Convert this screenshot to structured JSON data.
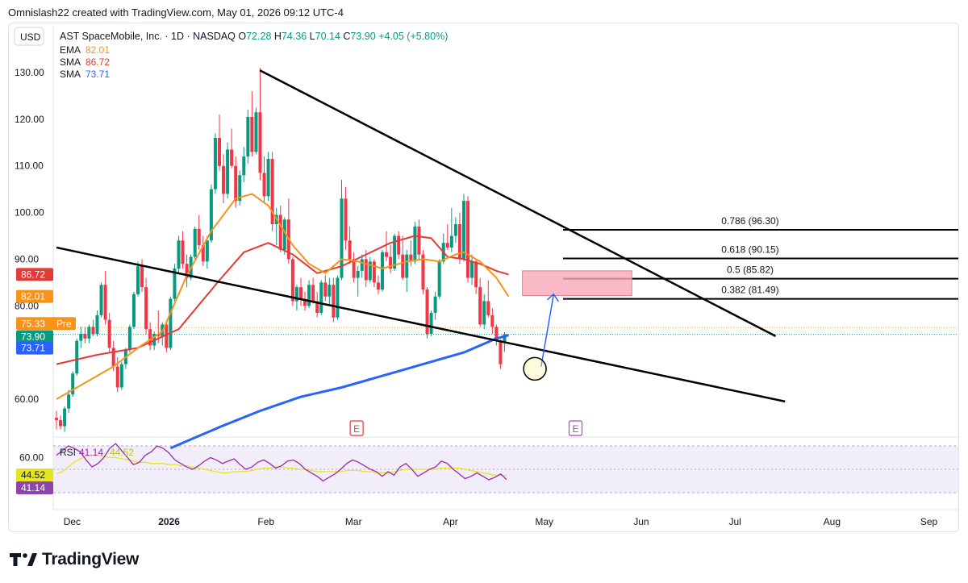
{
  "header": {
    "caption": "Omnislash22 created with TradingView.com, May 01, 2026 09:12 UTC-4"
  },
  "symbol": {
    "currency": "USD",
    "name": "AST SpaceMobile, Inc. · 1D · NASDAQ",
    "o_label": "O",
    "o": "72.28",
    "h_label": "H",
    "h": "74.36",
    "l_label": "L",
    "l": "70.14",
    "c_label": "C",
    "c": "73.90",
    "change": "+4.05 (+5.80%)"
  },
  "indicators": [
    {
      "name": "EMA",
      "value": "82.01",
      "color": "#f7931a"
    },
    {
      "name": "SMA",
      "value": "86.72",
      "color": "#e53935"
    },
    {
      "name": "SMA",
      "value": "73.71",
      "color": "#2962ff"
    }
  ],
  "price_tags": [
    {
      "text": "86.72",
      "bg": "#e53935"
    },
    {
      "text": "82.01",
      "bg": "#f7931a"
    },
    {
      "text": "75.33",
      "bg": "#f7931a",
      "suffix": "Pre"
    },
    {
      "text": "73.90",
      "bg": "#089981"
    },
    {
      "text": "73.71",
      "bg": "#2962ff"
    }
  ],
  "rsi": {
    "label": "RSI",
    "v1": "41.14",
    "v2": "44.52",
    "ticks": [
      "60.00"
    ],
    "tag1": "44.52",
    "tag2": "41.14"
  },
  "fib_labels": [
    "0.786 (96.30)",
    "0.618 (90.15)",
    "0.5 (85.82)",
    "0.382 (81.49)"
  ],
  "earnings_markers": [
    "E",
    "E"
  ],
  "brand": "TradingView",
  "colors": {
    "up": "#089981",
    "down": "#f23645",
    "ema": "#f7931a",
    "sma_fast": "#e53935",
    "sma_slow": "#2962ff",
    "rsi": "#9c27b0",
    "rsi_ma": "#e6e61e",
    "zone": "#f7a8b8"
  },
  "chart_data": {
    "type": "candlestick",
    "y_ticks": [
      "130.00",
      "120.00",
      "110.00",
      "100.00",
      "90.00",
      "80.00",
      "60.00"
    ],
    "x_ticks": [
      "Dec",
      "2026",
      "Feb",
      "Mar",
      "Apr",
      "May",
      "Jun",
      "Jul",
      "Aug",
      "Sep"
    ],
    "ylim": [
      50.5,
      134
    ],
    "first_date": "2025-11-26",
    "grid": false,
    "candles": [
      [
        56.0,
        57.5,
        53.5,
        55.5
      ],
      [
        55.5,
        56.5,
        53.5,
        54.2
      ],
      [
        54.2,
        58.5,
        53.0,
        58.0
      ],
      [
        58.0,
        62.0,
        57.0,
        61.0
      ],
      [
        61.0,
        66.0,
        60.5,
        65.5
      ],
      [
        65.5,
        73.0,
        65.0,
        72.5
      ],
      [
        72.5,
        75.5,
        71.0,
        74.0
      ],
      [
        74.0,
        75.5,
        72.0,
        73.0
      ],
      [
        73.0,
        76.0,
        72.0,
        75.5
      ],
      [
        75.5,
        77.0,
        73.5,
        74.0
      ],
      [
        74.0,
        79.0,
        73.5,
        78.0
      ],
      [
        78.0,
        85.0,
        77.5,
        84.5
      ],
      [
        84.5,
        87.5,
        76.0,
        77.0
      ],
      [
        77.0,
        78.5,
        70.0,
        71.0
      ],
      [
        71.0,
        72.5,
        66.0,
        67.0
      ],
      [
        67.0,
        69.0,
        61.5,
        62.5
      ],
      [
        62.5,
        68.0,
        62.0,
        67.5
      ],
      [
        67.5,
        71.0,
        66.5,
        70.5
      ],
      [
        70.5,
        76.0,
        70.0,
        75.5
      ],
      [
        75.5,
        83.0,
        75.0,
        82.5
      ],
      [
        82.5,
        89.5,
        82.0,
        88.5
      ],
      [
        88.5,
        90.0,
        83.0,
        84.0
      ],
      [
        84.0,
        86.0,
        74.0,
        75.0
      ],
      [
        75.0,
        76.5,
        70.5,
        71.5
      ],
      [
        71.5,
        74.5,
        70.5,
        74.0
      ],
      [
        74.0,
        79.0,
        72.0,
        73.5
      ],
      [
        73.5,
        76.5,
        71.5,
        76.0
      ],
      [
        76.0,
        77.0,
        70.0,
        71.0
      ],
      [
        71.0,
        82.0,
        70.5,
        81.5
      ],
      [
        81.5,
        89.0,
        81.0,
        88.0
      ],
      [
        88.0,
        95.0,
        87.0,
        94.0
      ],
      [
        94.0,
        96.0,
        88.0,
        89.0
      ],
      [
        89.0,
        91.0,
        84.0,
        86.0
      ],
      [
        86.0,
        91.0,
        85.5,
        90.5
      ],
      [
        90.5,
        97.0,
        90.0,
        96.5
      ],
      [
        96.5,
        99.5,
        92.0,
        93.0
      ],
      [
        93.0,
        95.0,
        88.5,
        89.5
      ],
      [
        89.5,
        95.0,
        88.0,
        94.0
      ],
      [
        94.0,
        106.0,
        93.5,
        105.0
      ],
      [
        105.0,
        117.0,
        104.0,
        116.0
      ],
      [
        116.0,
        121.0,
        109.0,
        110.0
      ],
      [
        110.0,
        112.5,
        102.0,
        104.0
      ],
      [
        104.0,
        115.0,
        103.0,
        113.5
      ],
      [
        113.5,
        118.0,
        109.5,
        110.0
      ],
      [
        110.0,
        112.0,
        101.0,
        102.5
      ],
      [
        102.5,
        109.0,
        101.5,
        108.0
      ],
      [
        108.0,
        114.0,
        106.5,
        112.0
      ],
      [
        112.0,
        122.0,
        110.5,
        120.5
      ],
      [
        120.5,
        126.0,
        112.0,
        113.0
      ],
      [
        113.0,
        122.5,
        112.5,
        121.5
      ],
      [
        121.5,
        131.0,
        107.0,
        108.5
      ],
      [
        108.5,
        112.0,
        102.0,
        103.5
      ],
      [
        103.5,
        113.0,
        102.5,
        111.5
      ],
      [
        111.5,
        113.0,
        96.0,
        97.5
      ],
      [
        97.5,
        101.0,
        93.0,
        99.5
      ],
      [
        99.5,
        101.5,
        91.5,
        92.0
      ],
      [
        92.0,
        99.0,
        91.0,
        98.5
      ],
      [
        98.5,
        103.0,
        89.0,
        90.0
      ],
      [
        90.0,
        90.5,
        80.0,
        81.0
      ],
      [
        81.0,
        84.5,
        79.0,
        84.0
      ],
      [
        84.0,
        86.0,
        80.0,
        81.5
      ],
      [
        81.5,
        83.0,
        79.0,
        80.0
      ],
      [
        80.0,
        85.5,
        79.5,
        84.5
      ],
      [
        84.5,
        86.0,
        80.5,
        81.0
      ],
      [
        81.0,
        83.0,
        77.5,
        78.5
      ],
      [
        78.5,
        85.5,
        78.0,
        85.0
      ],
      [
        85.0,
        86.5,
        81.0,
        82.0
      ],
      [
        82.0,
        86.0,
        80.0,
        84.5
      ],
      [
        84.5,
        86.0,
        76.5,
        77.5
      ],
      [
        77.5,
        86.5,
        77.0,
        86.0
      ],
      [
        86.0,
        107.0,
        85.5,
        103.0
      ],
      [
        103.0,
        105.5,
        92.0,
        94.0
      ],
      [
        94.0,
        97.0,
        89.0,
        90.0
      ],
      [
        90.0,
        91.5,
        85.0,
        86.0
      ],
      [
        86.0,
        88.5,
        82.0,
        87.5
      ],
      [
        87.5,
        91.0,
        86.0,
        90.0
      ],
      [
        90.0,
        92.0,
        84.0,
        85.5
      ],
      [
        85.5,
        90.5,
        85.0,
        89.5
      ],
      [
        89.5,
        90.0,
        84.0,
        85.0
      ],
      [
        85.0,
        86.5,
        82.5,
        83.5
      ],
      [
        83.5,
        92.0,
        83.0,
        91.5
      ],
      [
        91.5,
        96.0,
        89.5,
        90.5
      ],
      [
        90.5,
        93.0,
        87.0,
        88.0
      ],
      [
        88.0,
        95.5,
        87.5,
        95.0
      ],
      [
        95.0,
        96.0,
        90.0,
        91.0
      ],
      [
        91.0,
        95.0,
        85.5,
        86.0
      ],
      [
        86.0,
        92.0,
        83.0,
        91.0
      ],
      [
        91.0,
        94.0,
        88.5,
        89.5
      ],
      [
        89.5,
        98.0,
        89.0,
        97.0
      ],
      [
        97.0,
        98.5,
        90.0,
        91.0
      ],
      [
        91.0,
        92.0,
        82.5,
        83.5
      ],
      [
        83.5,
        84.0,
        73.0,
        74.0
      ],
      [
        74.0,
        79.0,
        73.5,
        78.5
      ],
      [
        78.5,
        83.0,
        77.0,
        82.0
      ],
      [
        82.0,
        90.0,
        81.5,
        89.5
      ],
      [
        89.5,
        95.5,
        89.0,
        93.5
      ],
      [
        93.5,
        97.5,
        92.0,
        92.5
      ],
      [
        92.5,
        101.0,
        91.5,
        95.0
      ],
      [
        95.0,
        99.0,
        93.5,
        97.5
      ],
      [
        97.5,
        100.0,
        89.0,
        90.0
      ],
      [
        90.0,
        104.0,
        89.5,
        102.5
      ],
      [
        102.5,
        103.5,
        85.0,
        86.0
      ],
      [
        86.0,
        91.0,
        84.5,
        89.5
      ],
      [
        89.5,
        90.0,
        82.5,
        84.0
      ],
      [
        84.0,
        86.0,
        75.5,
        76.0
      ],
      [
        76.0,
        82.5,
        75.0,
        81.0
      ],
      [
        81.0,
        85.5,
        77.5,
        78.0
      ],
      [
        78.0,
        79.5,
        74.0,
        75.5
      ],
      [
        75.5,
        76.0,
        71.5,
        72.5
      ],
      [
        72.5,
        72.8,
        66.5,
        67.5
      ],
      [
        72.28,
        74.36,
        70.14,
        73.9
      ]
    ],
    "ema_value": "82.01",
    "sma_fast_value": "86.72",
    "sma_slow_value": "73.71",
    "sma_fast": [
      [
        0,
        67.5
      ],
      [
        10,
        69.5
      ],
      [
        20,
        71.0
      ],
      [
        30,
        75.0
      ],
      [
        40,
        85.5
      ],
      [
        46,
        91.5
      ],
      [
        52,
        93.5
      ],
      [
        58,
        91.0
      ],
      [
        64,
        87.0
      ],
      [
        70,
        88.5
      ],
      [
        76,
        91.0
      ],
      [
        82,
        93.5
      ],
      [
        88,
        95.0
      ],
      [
        92,
        94.5
      ],
      [
        96,
        90.5
      ],
      [
        100,
        90.0
      ],
      [
        104,
        89.0
      ],
      [
        108,
        87.5
      ],
      [
        111,
        86.72
      ]
    ],
    "ema": [
      [
        0,
        60.0
      ],
      [
        8,
        64.0
      ],
      [
        14,
        67.0
      ],
      [
        20,
        71.0
      ],
      [
        26,
        74.5
      ],
      [
        32,
        86.5
      ],
      [
        38,
        96.0
      ],
      [
        44,
        103.0
      ],
      [
        48,
        104.0
      ],
      [
        52,
        101.5
      ],
      [
        58,
        93.0
      ],
      [
        62,
        89.0
      ],
      [
        66,
        87.0
      ],
      [
        70,
        90.0
      ],
      [
        74,
        89.5
      ],
      [
        80,
        88.0
      ],
      [
        86,
        89.5
      ],
      [
        90,
        90.0
      ],
      [
        94,
        89.5
      ],
      [
        98,
        91.0
      ],
      [
        100,
        91.5
      ],
      [
        104,
        89.5
      ],
      [
        108,
        86.0
      ],
      [
        111,
        82.01
      ]
    ],
    "sma_slow": [
      [
        28,
        49.5
      ],
      [
        40,
        54.0
      ],
      [
        50,
        57.5
      ],
      [
        60,
        60.5
      ],
      [
        70,
        62.5
      ],
      [
        80,
        65.0
      ],
      [
        90,
        67.5
      ],
      [
        100,
        70.0
      ],
      [
        108,
        73.0
      ],
      [
        111,
        73.71
      ]
    ],
    "rsi_range": [
      0,
      100
    ],
    "rsi": [
      62,
      66,
      70,
      68,
      65,
      58,
      52,
      55,
      60,
      68,
      72,
      66,
      60,
      54,
      56,
      62,
      65,
      70,
      68,
      64,
      58,
      55,
      52,
      50,
      53,
      57,
      60,
      58,
      55,
      57,
      59,
      54,
      50,
      52,
      56,
      58,
      55,
      51,
      53,
      57,
      58,
      55,
      50,
      47,
      44,
      40,
      43,
      46,
      50,
      55,
      58,
      56,
      53,
      50,
      48,
      44,
      48,
      45,
      52,
      55,
      50,
      44,
      47,
      50,
      52,
      57,
      55,
      50,
      46,
      42,
      44,
      47,
      44,
      41,
      43,
      46,
      41.14
    ],
    "rsi_ma": [
      46,
      48,
      52,
      56,
      59,
      61,
      62,
      62,
      61,
      60,
      60,
      59,
      58,
      57,
      56,
      56,
      55,
      55,
      55,
      54,
      54,
      53,
      53,
      52,
      51,
      50,
      49,
      48,
      47,
      47,
      48,
      48,
      48,
      49,
      50,
      51,
      51,
      52,
      52,
      51,
      51,
      50,
      50,
      49,
      48,
      48,
      48,
      48,
      48,
      49,
      49,
      49,
      48,
      48,
      47,
      47,
      47,
      48,
      49,
      50,
      50,
      50,
      50,
      50,
      50,
      51,
      51,
      51,
      51,
      50,
      49,
      48,
      47,
      46,
      45,
      45,
      44.52
    ],
    "trendlines": [
      {
        "from": [
          "2026-01-30",
          130.5
        ],
        "to": [
          "2026-07-14",
          73.5
        ]
      },
      {
        "from": [
          "2025-11-26",
          92.5
        ],
        "to": [
          "2026-07-17",
          59.5
        ]
      }
    ],
    "fib_levels": [
      96.3,
      90.15,
      85.82,
      81.49
    ],
    "zone": {
      "from": "2026-04-24",
      "to": "2026-05-29",
      "top": 87.5,
      "bottom": 82.2
    },
    "arrow": {
      "from": [
        "2026-04-30",
        67.0
      ],
      "to": [
        "2026-05-04",
        82.5
      ]
    },
    "circle": {
      "date": "2026-04-28",
      "price": 66.5
    },
    "earnings_dates": [
      "2026-03-02",
      "2026-05-11"
    ]
  }
}
